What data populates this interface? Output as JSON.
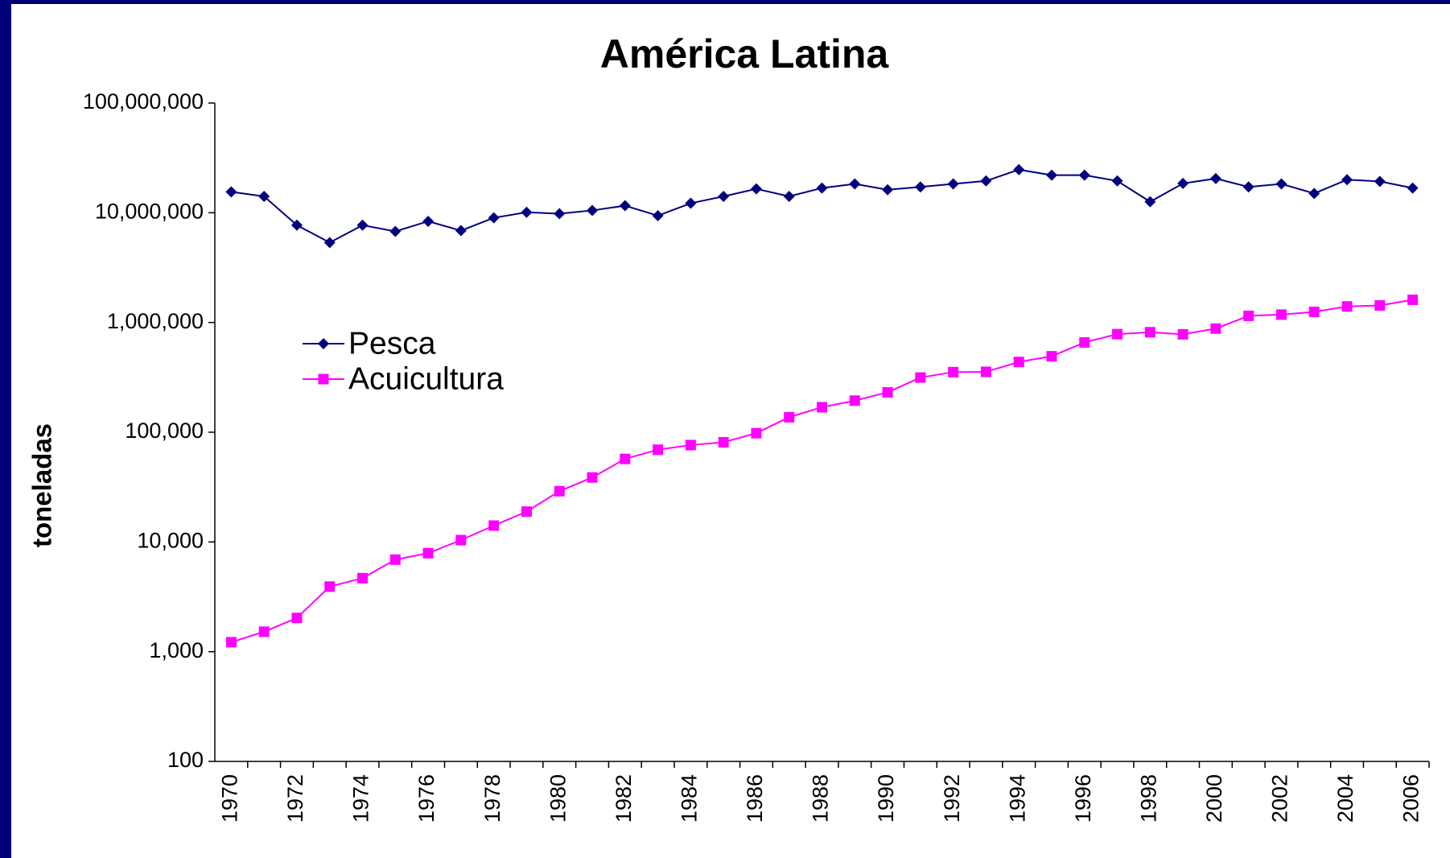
{
  "chart_data": {
    "type": "line",
    "title": "América Latina",
    "y_label": "toneladas",
    "x": [
      1970,
      1971,
      1972,
      1973,
      1974,
      1975,
      1976,
      1977,
      1978,
      1979,
      1980,
      1981,
      1982,
      1983,
      1984,
      1985,
      1986,
      1987,
      1988,
      1989,
      1990,
      1991,
      1992,
      1993,
      1994,
      1995,
      1996,
      1997,
      1998,
      1999,
      2000,
      2001,
      2002,
      2003,
      2004,
      2005,
      2006
    ],
    "xlim": [
      1969.5,
      2006.5
    ],
    "xticks": [
      1970,
      1972,
      1974,
      1976,
      1978,
      1980,
      1982,
      1984,
      1986,
      1988,
      1990,
      1992,
      1994,
      1996,
      1998,
      2000,
      2002,
      2004,
      2006
    ],
    "ylim": [
      100,
      100000000
    ],
    "log_scale": true,
    "yticks": [
      100,
      {
        "value": 1000,
        "label": "1,000"
      },
      {
        "value": 10000,
        "label": "10,000"
      },
      {
        "value": 100000,
        "label": "100,000"
      },
      {
        "value": 1000000,
        "label": "1,000,000"
      },
      {
        "value": 10000000,
        "label": "10,000,000"
      },
      {
        "value": 100000000,
        "label": "100,000,000"
      }
    ],
    "grid": false,
    "legend": "upper left",
    "series": [
      {
        "name": "Pesca",
        "color": "#000080",
        "marker": "diamond",
        "values": [
          15500000,
          14100000,
          7700000,
          5350000,
          7700000,
          6760000,
          8360000,
          6870000,
          9000000,
          10100000,
          9800000,
          10500000,
          11600000,
          9400000,
          12200000,
          14100000,
          16500000,
          14100000,
          16800000,
          18300000,
          16200000,
          17200000,
          18300000,
          19500000,
          24700000,
          22000000,
          22000000,
          19500000,
          12600000,
          18500000,
          20500000,
          17200000,
          18300000,
          15000000,
          20000000,
          19300000,
          16800000
        ]
      },
      {
        "name": "Acuicultura",
        "color": "#ff00ff",
        "marker": "square",
        "values": [
          1220,
          1520,
          2030,
          3920,
          4680,
          6900,
          7900,
          10400,
          14100,
          18900,
          29000,
          38700,
          57100,
          69300,
          76400,
          81000,
          98000,
          137000,
          169000,
          194000,
          231000,
          315000,
          353000,
          355000,
          437000,
          492000,
          658000,
          783000,
          815000,
          780000,
          880000,
          1150000,
          1180000,
          1250000,
          1400000,
          1430000,
          1610000
        ]
      }
    ]
  }
}
